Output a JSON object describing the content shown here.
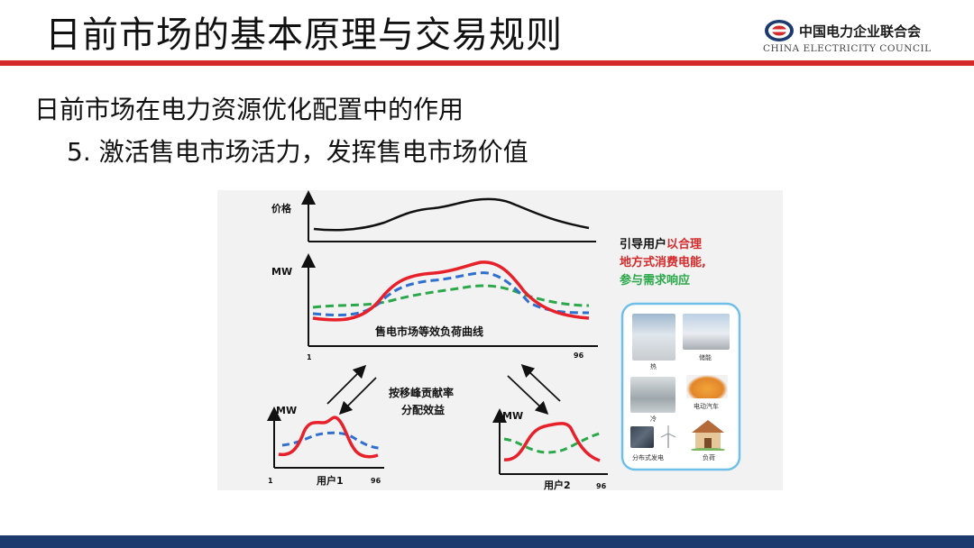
{
  "slide": {
    "title": "日前市场的基本原理与交易规则",
    "subtitle": "日前市场在电力资源优化配置中的作用",
    "point": "5. 激活售电市场活力，发挥售电市场价值"
  },
  "logo": {
    "name_cn": "中国电力企业联合会",
    "name_en": "CHINA ELECTRICITY COUNCIL"
  },
  "figure": {
    "price_label": "价格",
    "mw_label": "MW",
    "curve_label": "售电市场等效负荷曲线",
    "axis_start": "1",
    "axis_end": "96",
    "center_text_line1": "按移峰贡献率",
    "center_text_line2": "分配效益",
    "user1_label": "用户1",
    "user2_label": "用户2",
    "guide_black": "引导用户",
    "guide_red_1": "以合理",
    "guide_red_2": "地方式消费电能,",
    "guide_green": "参与需求响应",
    "resources": [
      "热",
      "储能",
      "冷",
      "电动汽车",
      "分布式发电",
      "负荷"
    ]
  },
  "colors": {
    "accent_red": "#d42a2a",
    "footer_navy": "#1d3a6e",
    "curve_red": "#e8202a",
    "curve_blue": "#2f6fd0",
    "curve_green": "#2aa84a",
    "panel_border": "#6fc0e8"
  }
}
